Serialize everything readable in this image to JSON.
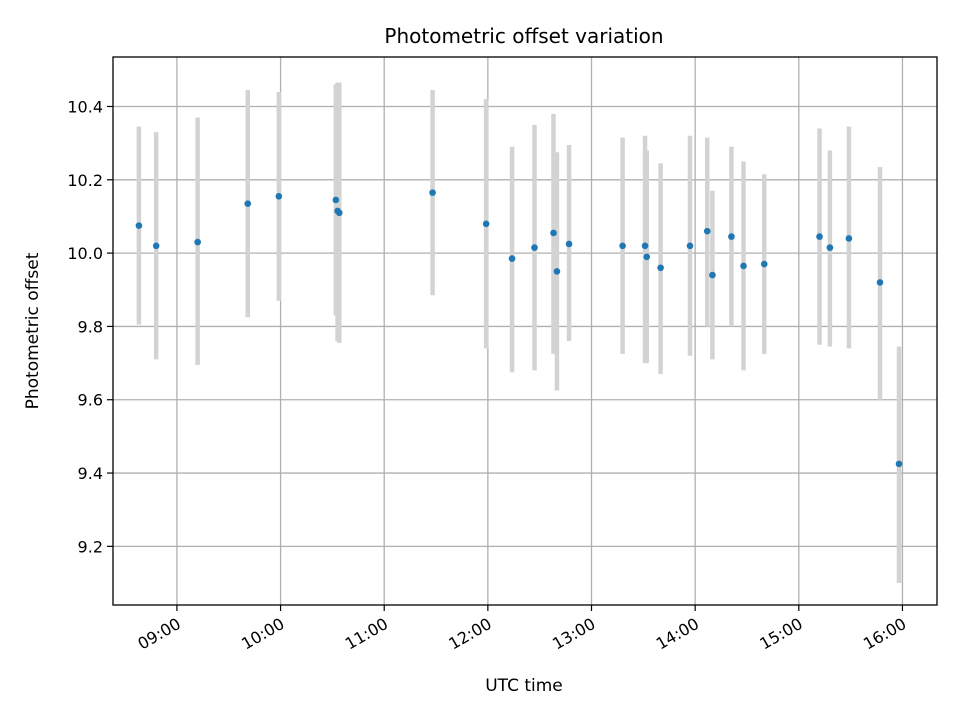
{
  "chart_data": {
    "type": "scatter",
    "title": "Photometric offset variation",
    "xlabel": "UTC time",
    "ylabel": "Photometric offset",
    "x_type": "time",
    "x_ticks": [
      "09:00",
      "10:00",
      "11:00",
      "12:00",
      "13:00",
      "14:00",
      "15:00",
      "16:00"
    ],
    "xlim": [
      "08:23",
      "16:20"
    ],
    "y_ticks": [
      "9.2",
      "9.4",
      "9.6",
      "9.8",
      "10.0",
      "10.2",
      "10.4"
    ],
    "ylim": [
      9.04,
      10.535
    ],
    "grid": true,
    "point_color": "#1f77b4",
    "errorbar_color": "#d3d3d3",
    "points": [
      {
        "x": "08:38",
        "y": 10.075,
        "y_low": 9.805,
        "y_high": 10.345
      },
      {
        "x": "08:48",
        "y": 10.02,
        "y_low": 9.71,
        "y_high": 10.33
      },
      {
        "x": "09:12",
        "y": 10.03,
        "y_low": 9.695,
        "y_high": 10.37
      },
      {
        "x": "09:41",
        "y": 10.135,
        "y_low": 9.825,
        "y_high": 10.445
      },
      {
        "x": "09:59",
        "y": 10.155,
        "y_low": 9.87,
        "y_high": 10.44
      },
      {
        "x": "10:32",
        "y": 10.145,
        "y_low": 9.83,
        "y_high": 10.46
      },
      {
        "x": "10:33",
        "y": 10.115,
        "y_low": 9.76,
        "y_high": 10.465
      },
      {
        "x": "10:34",
        "y": 10.11,
        "y_low": 9.755,
        "y_high": 10.465
      },
      {
        "x": "11:28",
        "y": 10.165,
        "y_low": 9.885,
        "y_high": 10.445
      },
      {
        "x": "11:59",
        "y": 10.08,
        "y_low": 9.74,
        "y_high": 10.42
      },
      {
        "x": "12:14",
        "y": 9.985,
        "y_low": 9.675,
        "y_high": 10.29
      },
      {
        "x": "12:27",
        "y": 10.015,
        "y_low": 9.68,
        "y_high": 10.35
      },
      {
        "x": "12:38",
        "y": 10.055,
        "y_low": 9.725,
        "y_high": 10.38
      },
      {
        "x": "12:40",
        "y": 9.95,
        "y_low": 9.625,
        "y_high": 10.275
      },
      {
        "x": "12:47",
        "y": 10.025,
        "y_low": 9.76,
        "y_high": 10.295
      },
      {
        "x": "13:18",
        "y": 10.02,
        "y_low": 9.725,
        "y_high": 10.315
      },
      {
        "x": "13:31",
        "y": 10.02,
        "y_low": 9.7,
        "y_high": 10.32
      },
      {
        "x": "13:32",
        "y": 9.99,
        "y_low": 9.7,
        "y_high": 10.28
      },
      {
        "x": "13:40",
        "y": 9.96,
        "y_low": 9.67,
        "y_high": 10.245
      },
      {
        "x": "13:57",
        "y": 10.02,
        "y_low": 9.72,
        "y_high": 10.32
      },
      {
        "x": "14:07",
        "y": 10.06,
        "y_low": 9.8,
        "y_high": 10.315
      },
      {
        "x": "14:10",
        "y": 9.94,
        "y_low": 9.71,
        "y_high": 10.17
      },
      {
        "x": "14:21",
        "y": 10.045,
        "y_low": 9.8,
        "y_high": 10.29
      },
      {
        "x": "14:28",
        "y": 9.965,
        "y_low": 9.68,
        "y_high": 10.25
      },
      {
        "x": "14:40",
        "y": 9.97,
        "y_low": 9.725,
        "y_high": 10.215
      },
      {
        "x": "15:12",
        "y": 10.045,
        "y_low": 9.75,
        "y_high": 10.34
      },
      {
        "x": "15:18",
        "y": 10.015,
        "y_low": 9.745,
        "y_high": 10.28
      },
      {
        "x": "15:29",
        "y": 10.04,
        "y_low": 9.74,
        "y_high": 10.345
      },
      {
        "x": "15:47",
        "y": 9.92,
        "y_low": 9.6,
        "y_high": 10.235
      },
      {
        "x": "15:58",
        "y": 9.425,
        "y_low": 9.1,
        "y_high": 9.745
      }
    ]
  }
}
